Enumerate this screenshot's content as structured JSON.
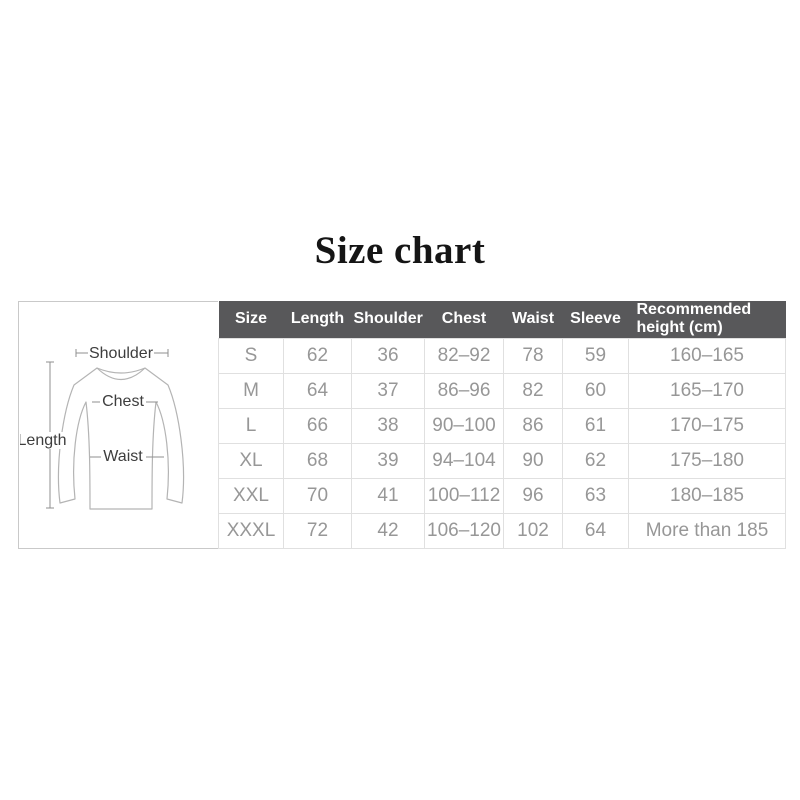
{
  "title": "Size chart",
  "diagram": {
    "labels": {
      "shoulder": "Shoulder",
      "chest": "Chest",
      "waist": "Waist",
      "length": "Length"
    }
  },
  "table": {
    "headers": [
      "Size",
      "Length",
      "Shoulder",
      "Chest",
      "Waist",
      "Sleeve",
      "Recommended height (cm)"
    ],
    "rows": [
      [
        "S",
        "62",
        "36",
        "82–92",
        "78",
        "59",
        "160–165"
      ],
      [
        "M",
        "64",
        "37",
        "86–96",
        "82",
        "60",
        "165–170"
      ],
      [
        "L",
        "66",
        "38",
        "90–100",
        "86",
        "61",
        "170–175"
      ],
      [
        "XL",
        "68",
        "39",
        "94–104",
        "90",
        "62",
        "175–180"
      ],
      [
        "XXL",
        "70",
        "41",
        "100–112",
        "96",
        "63",
        "180–185"
      ],
      [
        "XXXL",
        "72",
        "42",
        "106–120",
        "102",
        "64",
        "More than 185"
      ]
    ]
  },
  "chart_data": {
    "type": "table",
    "title": "Size chart",
    "columns": [
      "Size",
      "Length",
      "Shoulder",
      "Chest",
      "Waist",
      "Sleeve",
      "Recommended height (cm)"
    ],
    "rows": [
      [
        "S",
        62,
        36,
        "82–92",
        78,
        59,
        "160–165"
      ],
      [
        "M",
        64,
        37,
        "86–96",
        82,
        60,
        "165–170"
      ],
      [
        "L",
        66,
        38,
        "90–100",
        86,
        61,
        "170–175"
      ],
      [
        "XL",
        68,
        39,
        "94–104",
        90,
        62,
        "175–180"
      ],
      [
        "XXL",
        70,
        41,
        "100–112",
        96,
        63,
        "180–185"
      ],
      [
        "XXXL",
        72,
        42,
        "106–120",
        102,
        64,
        "More than 185"
      ]
    ]
  },
  "colors": {
    "header_bg": "#58585a",
    "header_text": "#ffffff",
    "cell_text": "#979797",
    "grid_border": "#e0e0e0",
    "diagram_border": "#c9c9c9",
    "diagram_label": "#3d3d3d",
    "shirt_outline": "#b4b4b4",
    "measure_line": "#8f8f8f"
  }
}
